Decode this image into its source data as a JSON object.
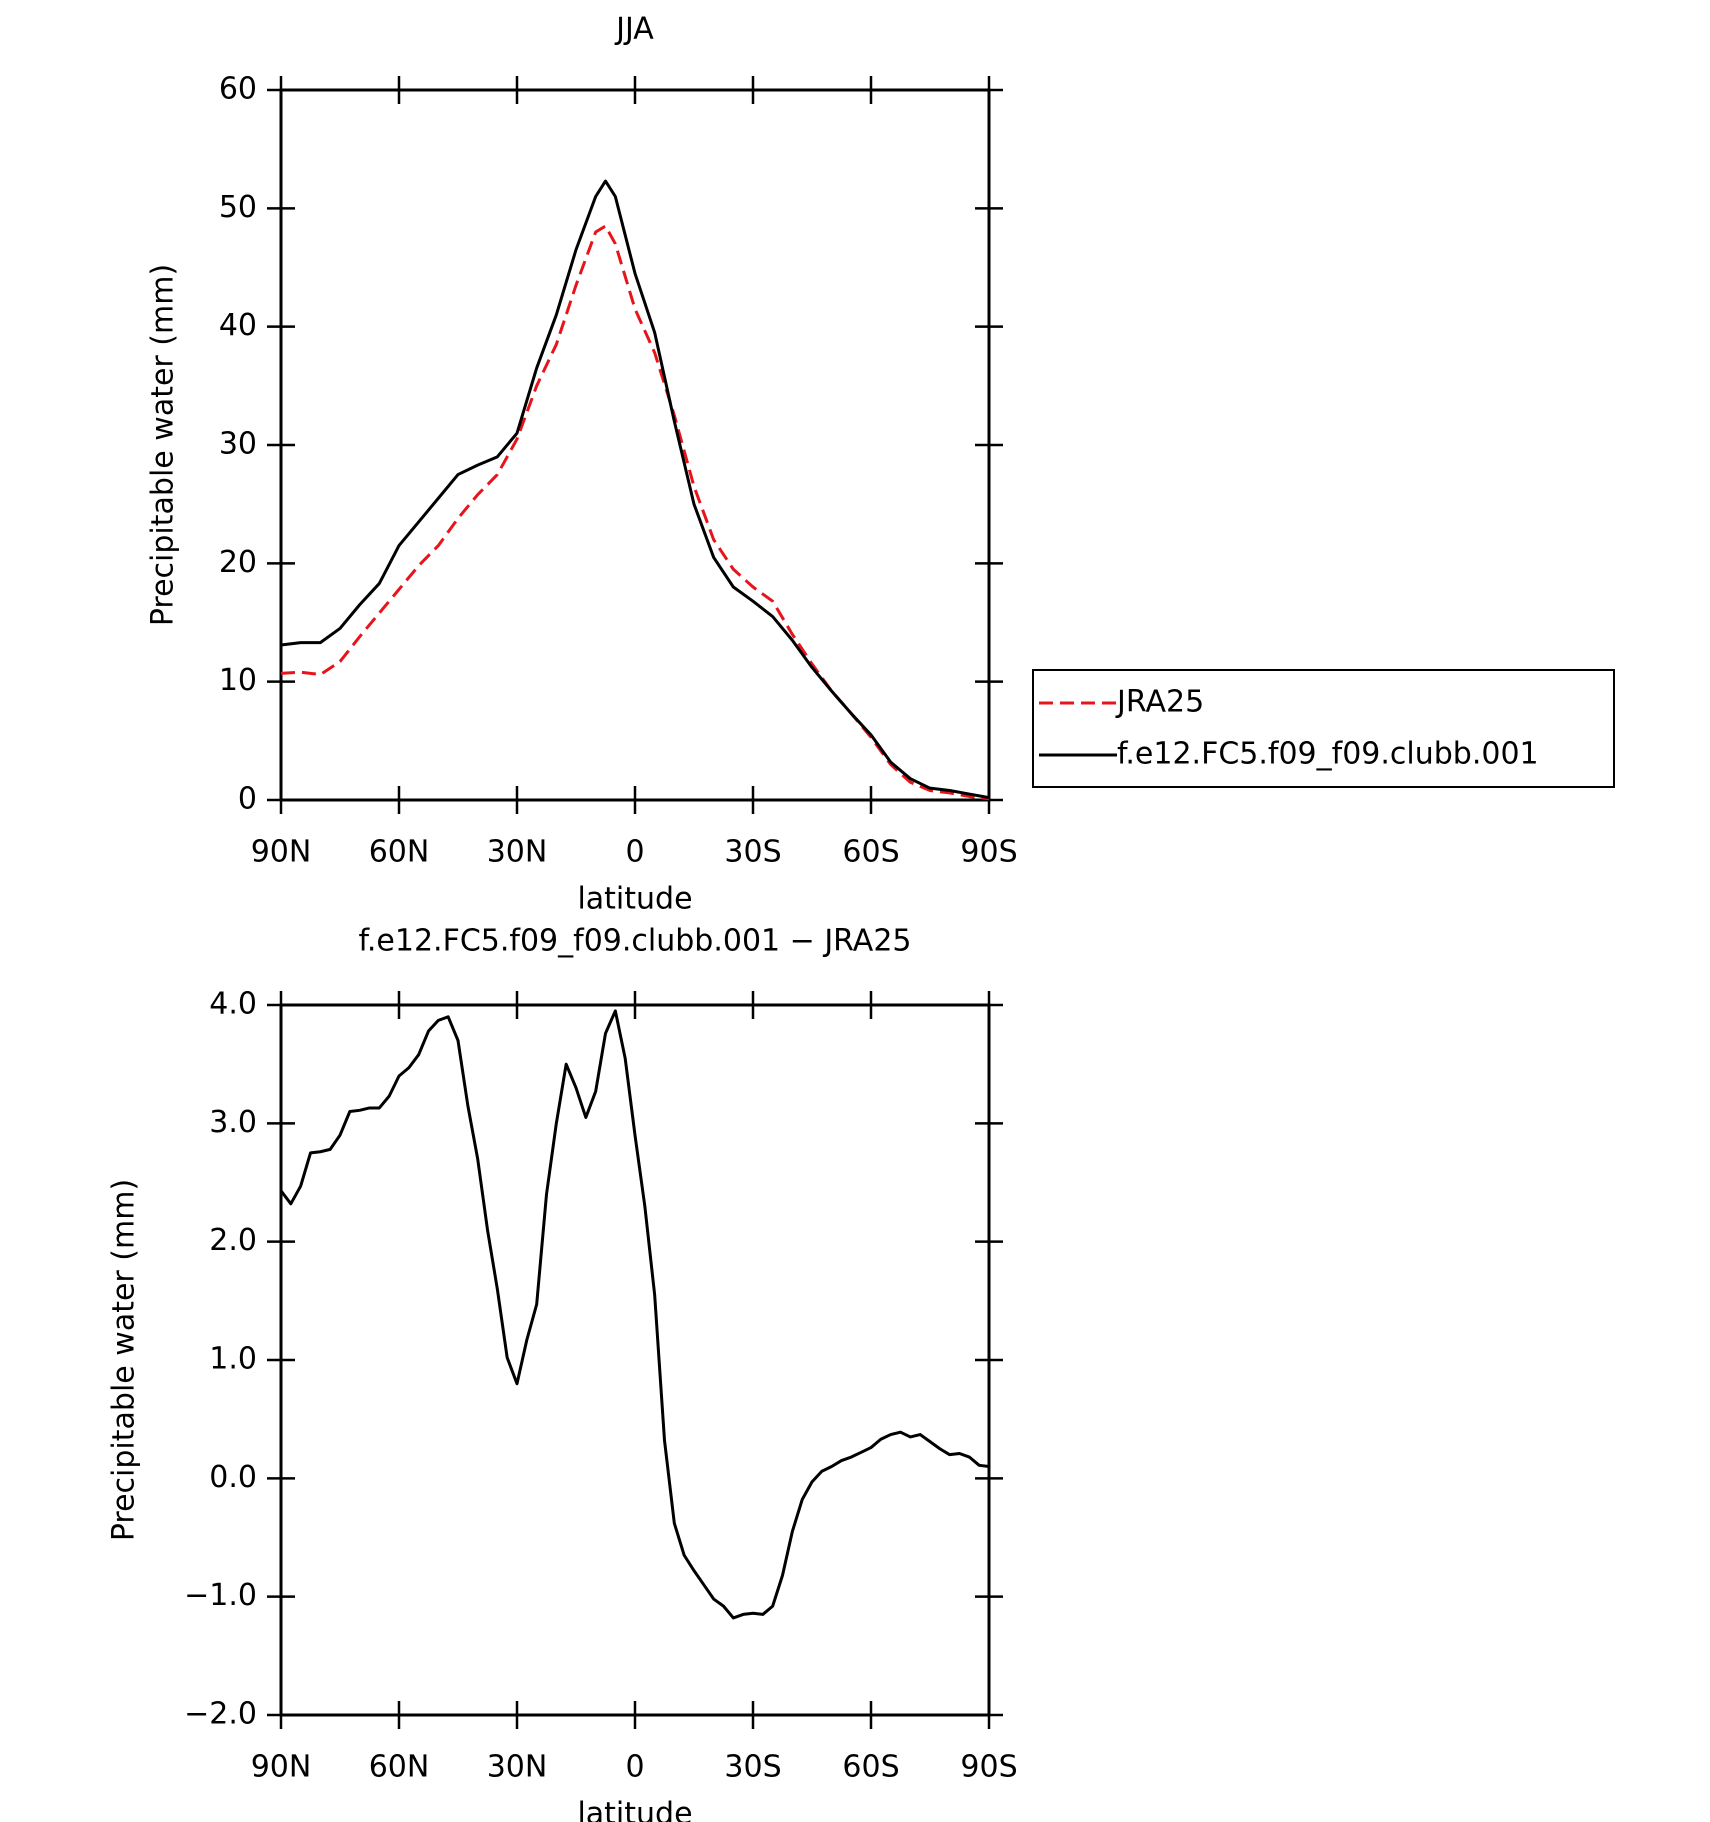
{
  "chart_data": [
    {
      "type": "line",
      "title": "JJA",
      "x_label": "latitude",
      "y_label": "Precipitable water (mm)",
      "xlim": [
        90,
        -90
      ],
      "xticks": [
        {
          "value": 90,
          "label": "90N"
        },
        {
          "value": 60,
          "label": "60N"
        },
        {
          "value": 30,
          "label": "30N"
        },
        0,
        {
          "value": -30,
          "label": "30S"
        },
        {
          "value": -60,
          "label": "60S"
        },
        {
          "value": -90,
          "label": "90S"
        }
      ],
      "ylim": [
        0,
        60
      ],
      "yticks": [
        0,
        10,
        20,
        30,
        40,
        50,
        60
      ],
      "legend": "outside-right",
      "x": [
        90,
        85,
        80,
        75,
        70,
        65,
        60,
        55,
        50,
        45,
        40,
        35,
        30,
        25,
        20,
        15,
        10,
        7.5,
        5,
        0,
        -5,
        -10,
        -15,
        -20,
        -25,
        -30,
        -35,
        -40,
        -45,
        -50,
        -55,
        -60,
        -65,
        -70,
        -75,
        -80,
        -85,
        -90
      ],
      "series": [
        {
          "name": "JRA25",
          "color": "#e8141c",
          "dash": "dashed",
          "values": [
            10.7,
            10.8,
            10.6,
            11.7,
            13.8,
            15.8,
            17.8,
            19.8,
            21.5,
            23.8,
            25.8,
            27.5,
            30.5,
            35,
            38.5,
            43.5,
            48,
            48.5,
            47,
            41.5,
            37.8,
            32.5,
            26.5,
            22,
            19.5,
            18,
            16.8,
            14,
            11.5,
            9.2,
            7.3,
            5.3,
            3,
            1.5,
            0.8,
            0.6,
            0.3,
            0.1
          ]
        },
        {
          "name": "f.e12.FC5.f09_f09.clubb.001",
          "color": "#000000",
          "dash": "solid",
          "values": [
            13.1,
            13.3,
            13.3,
            14.5,
            16.5,
            18.3,
            21.5,
            23.5,
            25.5,
            27.5,
            28.3,
            29,
            31,
            36.5,
            41,
            46.5,
            51,
            52.3,
            51,
            44.5,
            39.5,
            32,
            25,
            20.5,
            18,
            16.8,
            15.5,
            13.5,
            11.2,
            9.2,
            7.3,
            5.5,
            3.2,
            1.8,
            1,
            0.8,
            0.5,
            0.2
          ]
        }
      ]
    },
    {
      "type": "line",
      "title": "f.e12.FC5.f09_f09.clubb.001 − JRA25",
      "x_label": "latitude",
      "y_label": "Precipitable water (mm)",
      "xlim": [
        90,
        -90
      ],
      "xticks": [
        {
          "value": 90,
          "label": "90N"
        },
        {
          "value": 60,
          "label": "60N"
        },
        {
          "value": 30,
          "label": "30N"
        },
        0,
        {
          "value": -30,
          "label": "30S"
        },
        {
          "value": -60,
          "label": "60S"
        },
        {
          "value": -90,
          "label": "90S"
        }
      ],
      "ylim": [
        -2,
        4
      ],
      "yticks": [
        {
          "value": -2,
          "label": "−2.0"
        },
        {
          "value": -1,
          "label": "−1.0"
        },
        {
          "value": 0,
          "label": "0.0"
        },
        {
          "value": 1,
          "label": "1.0"
        },
        {
          "value": 2,
          "label": "2.0"
        },
        {
          "value": 3,
          "label": "3.0"
        },
        {
          "value": 4,
          "label": "4.0"
        }
      ],
      "color": "#000000",
      "x": [
        90,
        87.5,
        85,
        82.5,
        80,
        77.5,
        75,
        72.5,
        70,
        67.5,
        65,
        62.5,
        60,
        57.5,
        55,
        52.5,
        50,
        47.5,
        45,
        42.5,
        40,
        37.5,
        35,
        32.5,
        30,
        27.5,
        25,
        22.5,
        20,
        17.5,
        15,
        12.5,
        10,
        7.5,
        5,
        2.5,
        0,
        -2.5,
        -5,
        -7.5,
        -10,
        -12.5,
        -15,
        -17.5,
        -20,
        -22.5,
        -25,
        -27.5,
        -30,
        -32.5,
        -35,
        -37.5,
        -40,
        -42.5,
        -45,
        -47.5,
        -50,
        -52.5,
        -55,
        -57.5,
        -60,
        -62.5,
        -65,
        -67.5,
        -70,
        -72.5,
        -75,
        -77.5,
        -80,
        -82.5,
        -85,
        -87.5,
        -90
      ],
      "values": [
        2.43,
        2.32,
        2.47,
        2.75,
        2.76,
        2.78,
        2.9,
        3.1,
        3.11,
        3.13,
        3.13,
        3.23,
        3.4,
        3.47,
        3.58,
        3.78,
        3.87,
        3.9,
        3.7,
        3.15,
        2.7,
        2.1,
        1.6,
        1.02,
        0.8,
        1.17,
        1.47,
        2.4,
        3.0,
        3.5,
        3.3,
        3.05,
        3.27,
        3.76,
        3.95,
        3.55,
        2.9,
        2.3,
        1.55,
        0.32,
        -0.38,
        -0.65,
        -0.78,
        -0.9,
        -1.02,
        -1.08,
        -1.18,
        -1.15,
        -1.14,
        -1.15,
        -1.08,
        -0.82,
        -0.45,
        -0.18,
        -0.03,
        0.06,
        0.1,
        0.15,
        0.18,
        0.22,
        0.26,
        0.33,
        0.37,
        0.39,
        0.35,
        0.37,
        0.31,
        0.25,
        0.2,
        0.21,
        0.18,
        0.11,
        0.1
      ]
    }
  ]
}
